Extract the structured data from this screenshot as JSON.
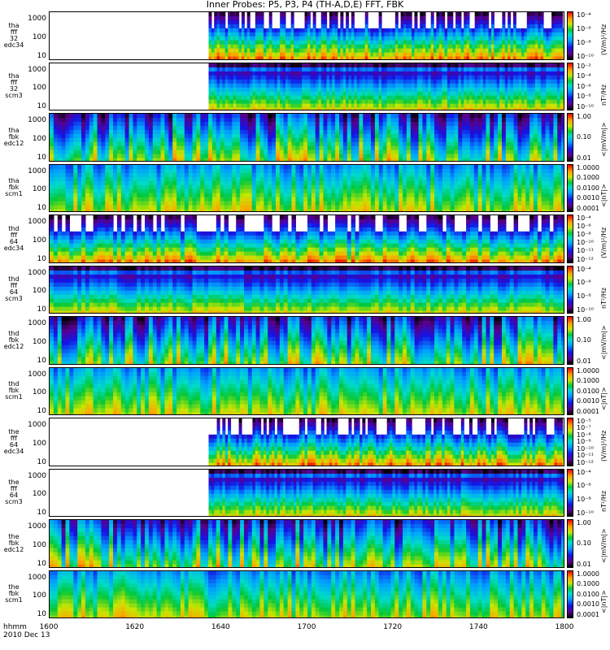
{
  "title": "Inner Probes: P5, P3, P4 (TH-A,D,E) FFT, FBK",
  "time_label": "hhmm",
  "date_label": "2010 Dec 13",
  "chart_data": {
    "type": "heatmap",
    "x_ticks": [
      "1600",
      "1620",
      "1640",
      "1700",
      "1720",
      "1740",
      "1800"
    ],
    "x_range": [
      "1600",
      "1800"
    ],
    "panels": [
      {
        "label": [
          "tha",
          "fff",
          "32",
          "edc34"
        ],
        "yticks": [
          "1000",
          "100",
          "10"
        ],
        "cticks": [
          "10⁻⁴",
          "10⁻⁶",
          "10⁻⁸",
          "10⁻¹⁰"
        ],
        "ctitle": "(V/m)²/Hz",
        "data_start": "1637",
        "kind": "fft"
      },
      {
        "label": [
          "tha",
          "fff",
          "32",
          "scm3"
        ],
        "yticks": [
          "1000",
          "100",
          "10"
        ],
        "cticks": [
          "10⁻²",
          "10⁻⁴",
          "10⁻⁶",
          "10⁻⁸",
          "10⁻¹⁰"
        ],
        "ctitle": "nT²/Hz",
        "data_start": "1637",
        "kind": "scm"
      },
      {
        "label": [
          "tha",
          "fbk",
          "edc12"
        ],
        "yticks": [
          "1000",
          "100",
          "10"
        ],
        "cticks": [
          "1.00",
          "0.10",
          "0.01"
        ],
        "ctitle": "<|mV/m|>",
        "data_start": "1600",
        "kind": "fbk"
      },
      {
        "label": [
          "tha",
          "fbk",
          "scm1"
        ],
        "yticks": [
          "1000",
          "100",
          "10"
        ],
        "cticks": [
          "1.0000",
          "0.1000",
          "0.0100",
          "0.0010",
          "0.0001"
        ],
        "ctitle": "<|nT|>",
        "data_start": "1600",
        "kind": "fbks"
      },
      {
        "label": [
          "thd",
          "fff",
          "64",
          "edc34"
        ],
        "yticks": [
          "1000",
          "100",
          "10"
        ],
        "cticks": [
          "10⁻⁴",
          "10⁻⁶",
          "10⁻⁸",
          "10⁻¹⁰",
          "10⁻¹¹",
          "10⁻¹²"
        ],
        "ctitle": "(V/m)²/Hz",
        "data_start": "1600",
        "kind": "fft"
      },
      {
        "label": [
          "thd",
          "fff",
          "64",
          "scm3"
        ],
        "yticks": [
          "1000",
          "100",
          "10"
        ],
        "cticks": [
          "10⁻⁴",
          "10⁻⁶",
          "10⁻⁸",
          "10⁻¹⁰"
        ],
        "ctitle": "nT²/Hz",
        "data_start": "1600",
        "kind": "scm"
      },
      {
        "label": [
          "thd",
          "fbk",
          "edc12"
        ],
        "yticks": [
          "1000",
          "100",
          "10"
        ],
        "cticks": [
          "1.00",
          "0.10",
          "0.01"
        ],
        "ctitle": "<|mV/m|>",
        "data_start": "1600",
        "kind": "fbk"
      },
      {
        "label": [
          "thd",
          "fbk",
          "scm1"
        ],
        "yticks": [
          "1000",
          "100",
          "10"
        ],
        "cticks": [
          "1.0000",
          "0.1000",
          "0.0100",
          "0.0010",
          "0.0001"
        ],
        "ctitle": "<|nT|>",
        "data_start": "1600",
        "kind": "fbks"
      },
      {
        "label": [
          "the",
          "fff",
          "64",
          "edc34"
        ],
        "yticks": [
          "1000",
          "100",
          "10"
        ],
        "cticks": [
          "10⁻⁵",
          "10⁻⁷",
          "10⁻⁸",
          "10⁻⁹",
          "10⁻¹⁰",
          "10⁻¹¹",
          "10⁻¹²"
        ],
        "ctitle": "(V/m)²/Hz",
        "data_start": "1637",
        "kind": "fft"
      },
      {
        "label": [
          "the",
          "fff",
          "64",
          "scm3"
        ],
        "yticks": [
          "1000",
          "100",
          "10"
        ],
        "cticks": [
          "10⁻⁴",
          "10⁻⁶",
          "10⁻⁸",
          "10⁻¹⁰"
        ],
        "ctitle": "nT²/Hz",
        "data_start": "1637",
        "kind": "scm"
      },
      {
        "label": [
          "the",
          "fbk",
          "edc12"
        ],
        "yticks": [
          "1000",
          "100",
          "10"
        ],
        "cticks": [
          "1.00",
          "0.10",
          "0.01"
        ],
        "ctitle": "<|mV/m|>",
        "data_start": "1600",
        "kind": "fbk"
      },
      {
        "label": [
          "the",
          "fbk",
          "scm1"
        ],
        "yticks": [
          "1000",
          "100",
          "10"
        ],
        "cticks": [
          "1.0000",
          "0.1000",
          "0.0100",
          "0.0010",
          "0.0001"
        ],
        "ctitle": "<|nT|>",
        "data_start": "1600",
        "kind": "fbks"
      }
    ]
  }
}
